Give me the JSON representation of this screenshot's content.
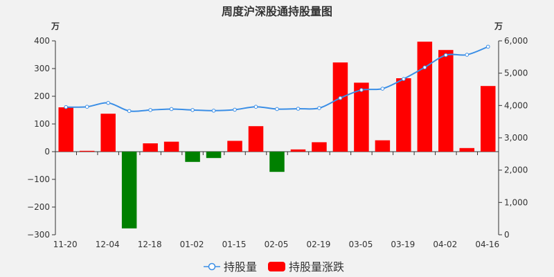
{
  "chart_data": {
    "type": "bar",
    "title": "周度沪深股通持股量图",
    "left_unit": "万",
    "right_unit": "万",
    "x_tick_labels": [
      "11-20",
      "12-04",
      "12-18",
      "01-02",
      "01-15",
      "02-05",
      "02-19",
      "03-05",
      "03-19",
      "04-02",
      "04-16"
    ],
    "left_axis": {
      "ylim": [
        -300,
        400
      ],
      "ticks": [
        400,
        300,
        200,
        100,
        0,
        -100,
        -200,
        -300
      ],
      "tick_labels": [
        "400",
        "300",
        "200",
        "100",
        "0",
        "−100",
        "−200",
        "−300"
      ]
    },
    "right_axis": {
      "ylim": [
        0,
        6000
      ],
      "ticks": [
        6000,
        5000,
        4000,
        3000,
        2000,
        1000,
        0
      ],
      "tick_labels": [
        "6,000",
        "5,000",
        "4,000",
        "3,000",
        "2,000",
        "1,000",
        "0"
      ]
    },
    "grid": false,
    "legend_position": "bottom-center",
    "series": [
      {
        "name": "持股量",
        "type": "line",
        "axis": "right",
        "color": "#3a8ee6",
        "values": [
          3950,
          3960,
          4080,
          3830,
          3860,
          3890,
          3860,
          3840,
          3870,
          3960,
          3890,
          3900,
          3920,
          4230,
          4480,
          4520,
          4820,
          5180,
          5560,
          5570,
          5820
        ]
      },
      {
        "name": "持股量涨跌",
        "type": "bar",
        "axis": "left",
        "color_up": "#ff0000",
        "color_down": "#008000",
        "values": [
          160,
          3,
          137,
          -277,
          30,
          36,
          -37,
          -23,
          39,
          92,
          -73,
          8,
          34,
          322,
          249,
          41,
          265,
          397,
          367,
          13,
          237
        ]
      }
    ]
  }
}
